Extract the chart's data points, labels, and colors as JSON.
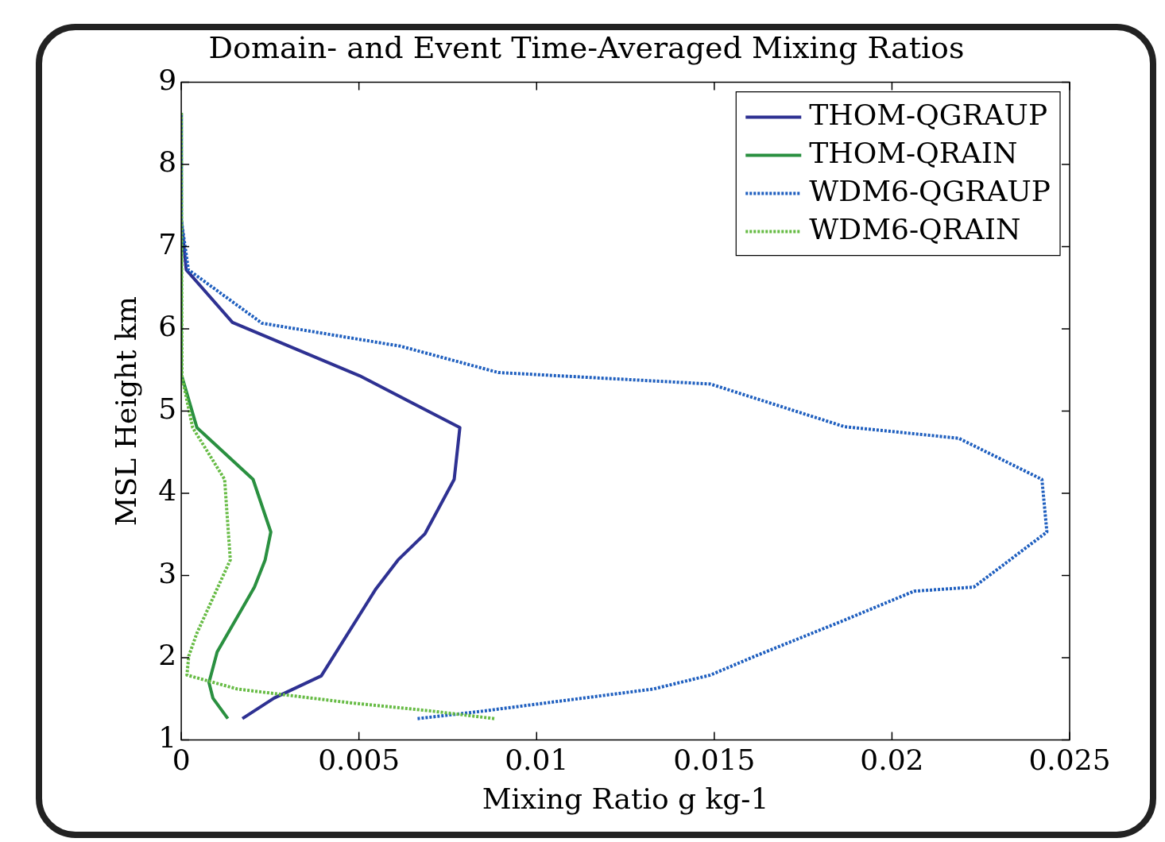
{
  "chart_data": {
    "type": "line",
    "title": "Domain- and Event Time-Averaged Mixing Ratios",
    "xlabel": "Mixing Ratio g kg-1",
    "ylabel": "MSL Height km",
    "xlim": [
      0,
      0.025
    ],
    "xticks": [
      0,
      0.005,
      0.01,
      0.015,
      0.02,
      0.025
    ],
    "ylim": [
      1,
      9
    ],
    "yticks": [
      1,
      2,
      3,
      4,
      5,
      6,
      7,
      8,
      9
    ],
    "grid": false,
    "legend": "top right",
    "series": [
      {
        "name": "THOM-QGRAUP",
        "color": "#2e3192",
        "line_style": "solid",
        "x": [
          0.00172,
          0.00261,
          0.00394,
          0.00548,
          0.0061,
          0.00686,
          0.00768,
          0.00784,
          0.00502,
          0.00144,
          0.00014,
          0,
          0
        ],
        "values": [
          1.26,
          1.51,
          1.78,
          2.84,
          3.19,
          3.51,
          4.17,
          4.8,
          5.43,
          6.08,
          6.72,
          7.33,
          8.63
        ]
      },
      {
        "name": "THOM-QRAIN",
        "color": "#2a9040",
        "line_style": "solid",
        "x": [
          0.00131,
          0.00089,
          0.00078,
          0.00101,
          0.00206,
          0.00236,
          0.00252,
          0.00202,
          0.00044,
          2e-05,
          0
        ],
        "values": [
          1.26,
          1.51,
          1.7,
          2.07,
          2.86,
          3.19,
          3.53,
          4.17,
          4.8,
          5.42,
          8.63
        ]
      },
      {
        "name": "WDM6-QGRAUP",
        "color": "#1f5fbf",
        "line_style": "dotted",
        "x": [
          0.00665,
          0.00846,
          0.01328,
          0.01489,
          0.01615,
          0.01856,
          0.02062,
          0.0223,
          0.02338,
          0.02436,
          0.02422,
          0.02188,
          0.01867,
          0.01489,
          0.00892,
          0.00617,
          0.00227,
          0.0002,
          0,
          0
        ],
        "values": [
          1.26,
          1.35,
          1.62,
          1.79,
          2.02,
          2.44,
          2.81,
          2.86,
          3.21,
          3.53,
          4.17,
          4.67,
          4.81,
          5.33,
          5.47,
          5.79,
          6.07,
          6.72,
          7.33,
          8.63
        ]
      },
      {
        "name": "WDM6-QRAIN",
        "color": "#66bb44",
        "line_style": "dotted",
        "x": [
          0.00881,
          0.00709,
          0.0048,
          0.00158,
          0.00016,
          0.00021,
          0.00044,
          0.00138,
          0.00122,
          0.00032,
          2e-05,
          0
        ],
        "values": [
          1.26,
          1.35,
          1.45,
          1.62,
          1.79,
          2.02,
          2.3,
          3.19,
          4.17,
          4.8,
          5.42,
          8.63
        ]
      }
    ]
  }
}
